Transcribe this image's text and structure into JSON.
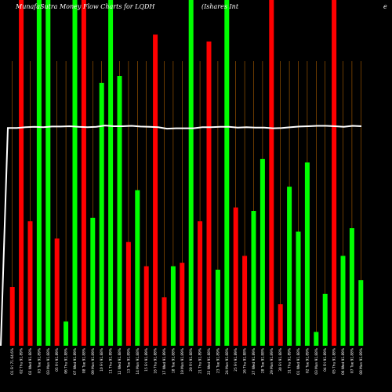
{
  "chart_data": {
    "type": "bar",
    "title_left": "MunafaSutra Money Flow Charts for LQDH",
    "title_mid": "(Ishares Int",
    "title_right": "e",
    "overlay_line": {
      "color": "#ffffff",
      "start_value": 0
    },
    "colors": {
      "up": "#00ff00",
      "down": "#ff0000",
      "grid": "#b06000",
      "background": "#000000",
      "line": "#ffffff"
    },
    "bars": [
      {
        "label": "01 Fri 71.64.6%",
        "value": 17,
        "color": "red"
      },
      {
        "label": "02 Thu 91.89%",
        "value": 100,
        "color": "red"
      },
      {
        "label": "02 Wed 91.88%",
        "value": 36,
        "color": "red"
      },
      {
        "label": "03 Tue 91.89%",
        "value": 100,
        "color": "green"
      },
      {
        "label": "03 Mon 91.88%",
        "value": 100,
        "color": "green"
      },
      {
        "label": "05 Fri 91.89%",
        "value": 31,
        "color": "red"
      },
      {
        "label": "06 Thu 91.88%",
        "value": 7,
        "color": "green"
      },
      {
        "label": "07 Wed 91.89%",
        "value": 100,
        "color": "green"
      },
      {
        "label": "08 Tue 91.88%",
        "value": 100,
        "color": "red"
      },
      {
        "label": "09 Mon 91.89%",
        "value": 37,
        "color": "green"
      },
      {
        "label": "10 Fri 91.88%",
        "value": 76,
        "color": "green"
      },
      {
        "label": "11 Thu 91.89%",
        "value": 100,
        "color": "green"
      },
      {
        "label": "12 Wed 91.88%",
        "value": 78,
        "color": "green"
      },
      {
        "label": "13 Tue 91.89%",
        "value": 30,
        "color": "red"
      },
      {
        "label": "14 Mon 91.88%",
        "value": 45,
        "color": "green"
      },
      {
        "label": "15 Fri 91.89%",
        "value": 23,
        "color": "red"
      },
      {
        "label": "16 Thu 91.88%",
        "value": 90,
        "color": "red"
      },
      {
        "label": "17 Wed 91.89%",
        "value": 14,
        "color": "red"
      },
      {
        "label": "18 Tue 91.88%",
        "value": 23,
        "color": "green"
      },
      {
        "label": "19 Mon 91.89%",
        "value": 24,
        "color": "red"
      },
      {
        "label": "20 Fri 91.88%",
        "value": 100,
        "color": "green"
      },
      {
        "label": "21 Thu 91.89%",
        "value": 36,
        "color": "red"
      },
      {
        "label": "22 Wed 91.88%",
        "value": 88,
        "color": "red"
      },
      {
        "label": "23 Tue 91.89%",
        "value": 22,
        "color": "green"
      },
      {
        "label": "24 Mon 91.88%",
        "value": 100,
        "color": "green"
      },
      {
        "label": "25 Fri 91.89%",
        "value": 40,
        "color": "red"
      },
      {
        "label": "26 Thu 91.88%",
        "value": 26,
        "color": "red"
      },
      {
        "label": "27 Wed 91.89%",
        "value": 39,
        "color": "green"
      },
      {
        "label": "28 Tue 91.88%",
        "value": 54,
        "color": "green"
      },
      {
        "label": "29 Mon 91.89%",
        "value": 100,
        "color": "red"
      },
      {
        "label": "30 Fri 91.88%",
        "value": 12,
        "color": "red"
      },
      {
        "label": "31 Thu 91.89%",
        "value": 46,
        "color": "green"
      },
      {
        "label": "01 Wed 91.88%",
        "value": 33,
        "color": "green"
      },
      {
        "label": "02 Tue 91.89%",
        "value": 53,
        "color": "green"
      },
      {
        "label": "03 Mon 91.88%",
        "value": 4,
        "color": "green"
      },
      {
        "label": "04 Fri 91.89%",
        "value": 15,
        "color": "green"
      },
      {
        "label": "05 Thu 91.88%",
        "value": 100,
        "color": "red"
      },
      {
        "label": "06 Wed 91.89%",
        "value": 26,
        "color": "green"
      },
      {
        "label": "07 Tue 91.88%",
        "value": 34,
        "color": "green"
      },
      {
        "label": "08 Mon 91.89%",
        "value": 19,
        "color": "green"
      }
    ],
    "line_values": [
      63,
      63,
      63.2,
      63.3,
      63.2,
      63.4,
      63.4,
      63.5,
      63.3,
      63.2,
      63.3,
      63.7,
      63.5,
      63.5,
      63.6,
      63.4,
      63.3,
      63.2,
      62.8,
      62.9,
      62.9,
      62.9,
      63.2,
      63.2,
      63.3,
      63.3,
      63.1,
      63.2,
      63.1,
      63.1,
      62.9,
      63,
      63.2,
      63.4,
      63.5,
      63.6,
      63.6,
      63.5,
      63.3,
      63.6,
      63.5
    ]
  }
}
